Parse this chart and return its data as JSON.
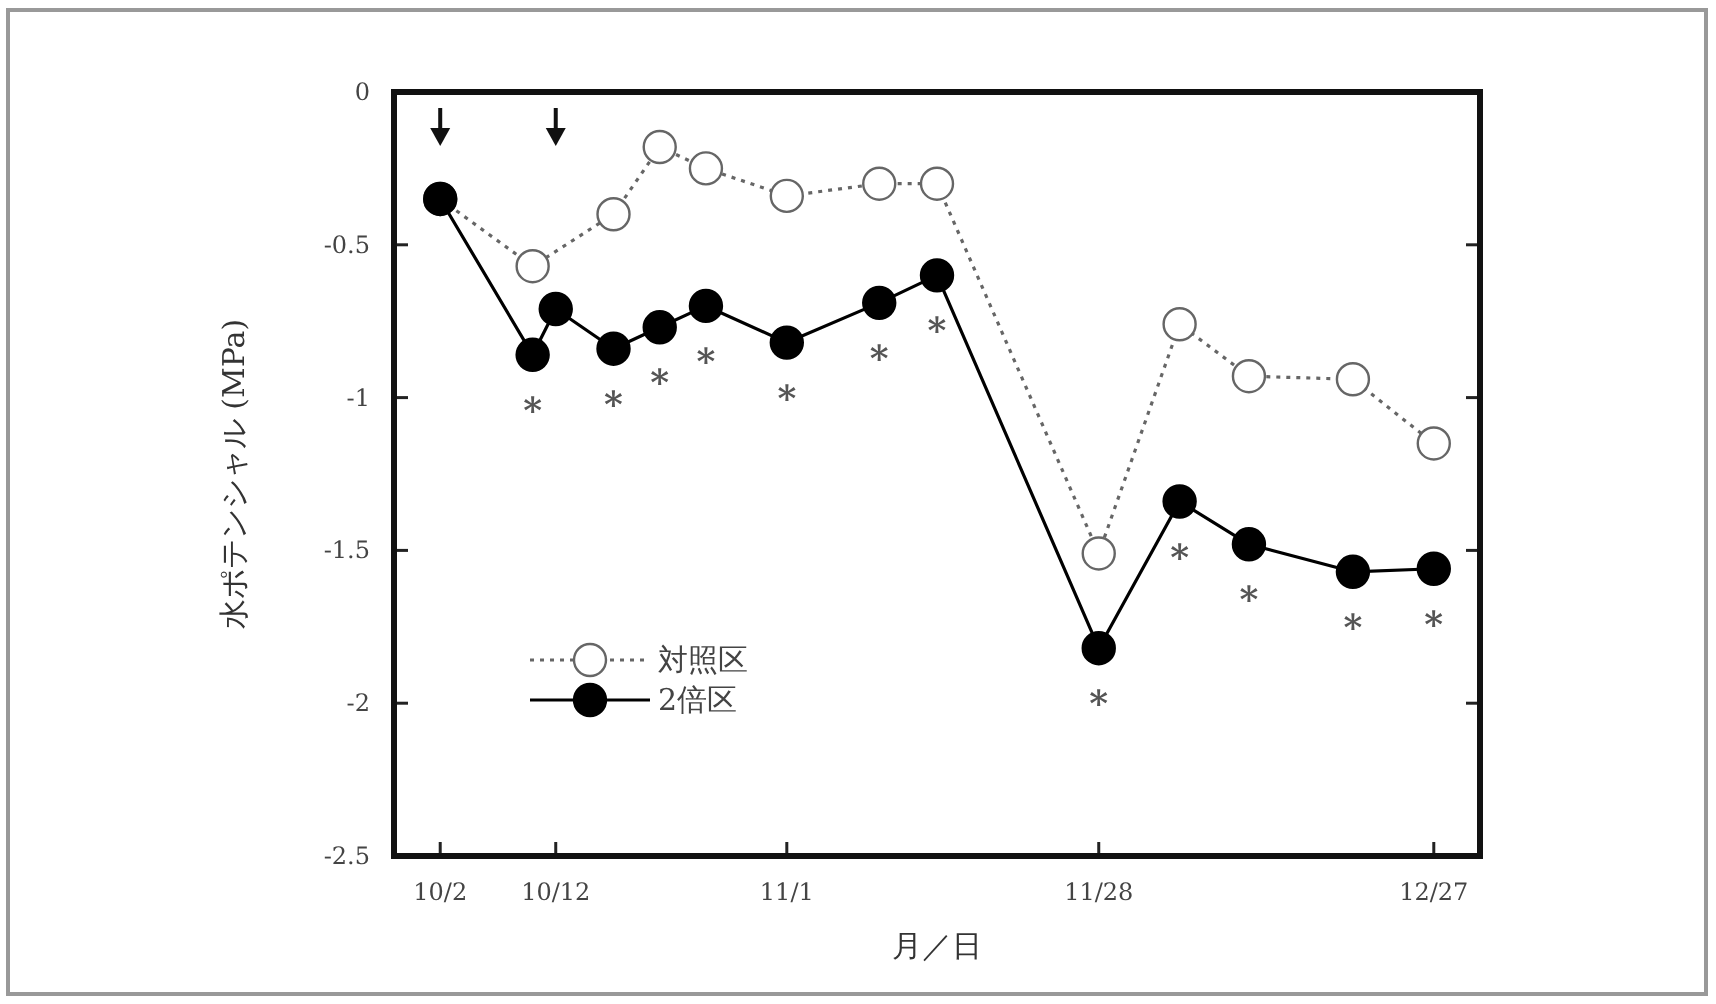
{
  "chart_data": {
    "type": "line",
    "xlabel": "月／日",
    "ylabel": "水ポテンシャル (MPa)",
    "xlim": [
      "--09-28",
      "--12-31"
    ],
    "xticks": [
      {
        "value": "--10-02",
        "label": "10/2"
      },
      {
        "value": "--10-12",
        "label": "10/12"
      },
      {
        "value": "--11-01",
        "label": "11/1"
      },
      {
        "value": "--11-28",
        "label": "11/28"
      },
      {
        "value": "--12-27",
        "label": "12/27"
      }
    ],
    "ylim": [
      -2.5,
      0
    ],
    "yticks": [
      0,
      -0.5,
      -1,
      -1.5,
      -2,
      -2.5
    ],
    "legend": "bottom left",
    "series": [
      {
        "name": "対照区",
        "color": "#666666",
        "marker": "circle",
        "line_style": "dotted",
        "x": [
          "--10-02",
          "--10-10",
          "--10-17",
          "--10-21",
          "--10-25",
          "--11-01",
          "--11-09",
          "--11-14",
          "--11-28",
          "--12-05",
          "--12-11",
          "--12-20",
          "--12-27"
        ],
        "values": [
          -0.35,
          -0.57,
          -0.4,
          -0.18,
          -0.25,
          -0.34,
          -0.3,
          -0.3,
          -1.51,
          -0.76,
          -0.93,
          -0.94,
          -1.15
        ]
      },
      {
        "name": "2倍区",
        "color": "#000000",
        "marker": "circle",
        "line_style": "solid",
        "x": [
          "--10-02",
          "--10-10",
          "--10-12",
          "--10-17",
          "--10-21",
          "--10-25",
          "--11-01",
          "--11-09",
          "--11-14",
          "--11-28",
          "--12-05",
          "--12-11",
          "--12-20",
          "--12-27"
        ],
        "values": [
          -0.35,
          -0.86,
          -0.71,
          -0.84,
          -0.77,
          -0.7,
          -0.82,
          -0.69,
          -0.6,
          -1.82,
          -1.34,
          -1.48,
          -1.57,
          -1.56
        ]
      }
    ],
    "annotations": [
      {
        "text": "*",
        "x": "--10-10",
        "y": -0.86
      },
      {
        "text": "*",
        "x": "--10-17",
        "y": -0.84
      },
      {
        "text": "*",
        "x": "--10-21",
        "y": -0.77
      },
      {
        "text": "*",
        "x": "--10-25",
        "y": -0.7
      },
      {
        "text": "*",
        "x": "--11-01",
        "y": -0.82
      },
      {
        "text": "*",
        "x": "--11-09",
        "y": -0.69
      },
      {
        "text": "*",
        "x": "--11-14",
        "y": -0.6
      },
      {
        "text": "*",
        "x": "--11-28",
        "y": -1.82
      },
      {
        "text": "*",
        "x": "--12-05",
        "y": -1.34
      },
      {
        "text": "*",
        "x": "--12-11",
        "y": -1.48
      },
      {
        "text": "*",
        "x": "--12-20",
        "y": -1.57
      },
      {
        "text": "*",
        "x": "--12-27",
        "y": -1.56
      }
    ]
  }
}
